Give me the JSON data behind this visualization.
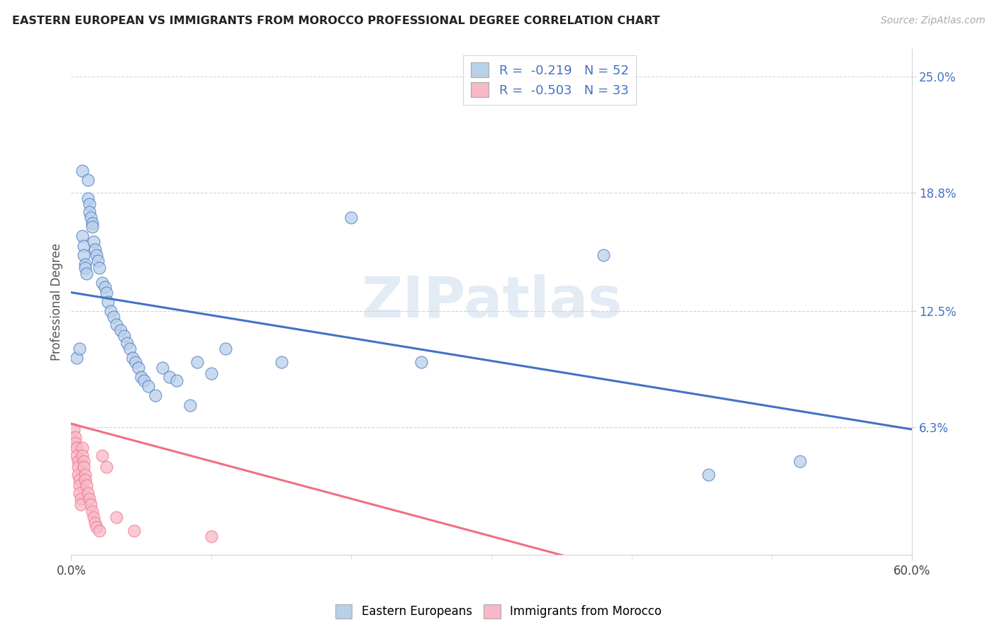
{
  "title": "EASTERN EUROPEAN VS IMMIGRANTS FROM MOROCCO PROFESSIONAL DEGREE CORRELATION CHART",
  "source": "Source: ZipAtlas.com",
  "ylabel": "Professional Degree",
  "ylabel_ticks": [
    "6.3%",
    "12.5%",
    "18.8%",
    "25.0%"
  ],
  "ylabel_vals": [
    0.063,
    0.125,
    0.188,
    0.25
  ],
  "xlim": [
    0.0,
    0.6
  ],
  "ylim": [
    -0.005,
    0.265
  ],
  "blue_R": -0.219,
  "blue_N": 52,
  "pink_R": -0.503,
  "pink_N": 33,
  "blue_color": "#b8d0e8",
  "pink_color": "#f8b8c8",
  "blue_line_color": "#4472c4",
  "pink_line_color": "#f07080",
  "watermark": "ZIPatlas",
  "blue_scatter_x": [
    0.004,
    0.006,
    0.008,
    0.008,
    0.009,
    0.009,
    0.01,
    0.01,
    0.011,
    0.012,
    0.012,
    0.013,
    0.013,
    0.014,
    0.015,
    0.015,
    0.016,
    0.017,
    0.018,
    0.019,
    0.02,
    0.022,
    0.024,
    0.025,
    0.026,
    0.028,
    0.03,
    0.032,
    0.035,
    0.038,
    0.04,
    0.042,
    0.044,
    0.046,
    0.048,
    0.05,
    0.052,
    0.055,
    0.06,
    0.065,
    0.07,
    0.075,
    0.085,
    0.09,
    0.1,
    0.11,
    0.15,
    0.2,
    0.25,
    0.38,
    0.455,
    0.52
  ],
  "blue_scatter_y": [
    0.1,
    0.105,
    0.2,
    0.165,
    0.16,
    0.155,
    0.15,
    0.148,
    0.145,
    0.195,
    0.185,
    0.182,
    0.178,
    0.175,
    0.172,
    0.17,
    0.162,
    0.158,
    0.155,
    0.152,
    0.148,
    0.14,
    0.138,
    0.135,
    0.13,
    0.125,
    0.122,
    0.118,
    0.115,
    0.112,
    0.108,
    0.105,
    0.1,
    0.098,
    0.095,
    0.09,
    0.088,
    0.085,
    0.08,
    0.095,
    0.09,
    0.088,
    0.075,
    0.098,
    0.092,
    0.105,
    0.098,
    0.175,
    0.098,
    0.155,
    0.038,
    0.045
  ],
  "pink_scatter_x": [
    0.002,
    0.003,
    0.003,
    0.004,
    0.004,
    0.005,
    0.005,
    0.005,
    0.006,
    0.006,
    0.006,
    0.007,
    0.007,
    0.008,
    0.008,
    0.009,
    0.009,
    0.01,
    0.01,
    0.011,
    0.012,
    0.013,
    0.014,
    0.015,
    0.016,
    0.017,
    0.018,
    0.02,
    0.022,
    0.025,
    0.032,
    0.045,
    0.1
  ],
  "pink_scatter_y": [
    0.062,
    0.058,
    0.055,
    0.052,
    0.048,
    0.045,
    0.042,
    0.038,
    0.035,
    0.032,
    0.028,
    0.025,
    0.022,
    0.052,
    0.048,
    0.045,
    0.042,
    0.038,
    0.035,
    0.032,
    0.028,
    0.025,
    0.022,
    0.018,
    0.015,
    0.012,
    0.01,
    0.008,
    0.048,
    0.042,
    0.015,
    0.008,
    0.005
  ]
}
